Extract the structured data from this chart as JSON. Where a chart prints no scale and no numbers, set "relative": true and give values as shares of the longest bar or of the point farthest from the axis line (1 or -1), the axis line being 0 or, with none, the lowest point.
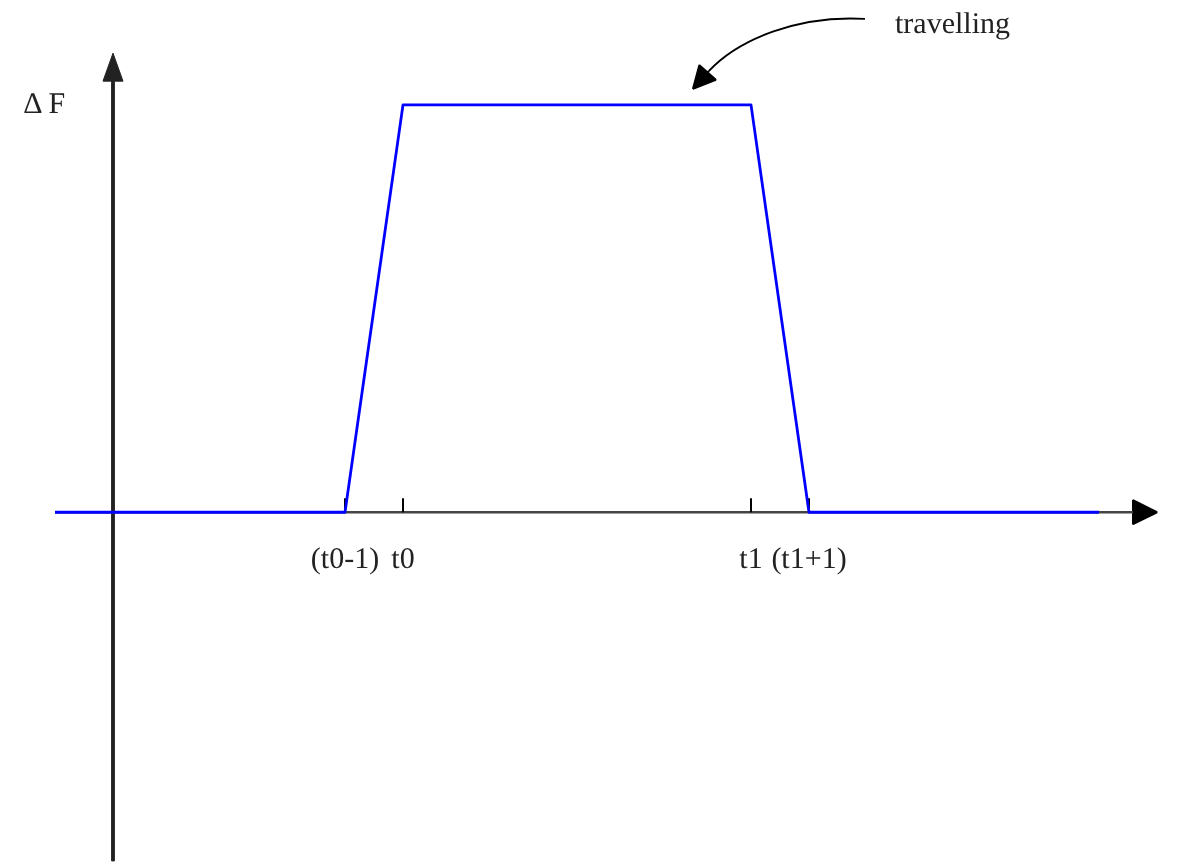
{
  "chart_data": {
    "type": "line",
    "categories": [
      null,
      null,
      null,
      null,
      null,
      "(t0-1)",
      "t0",
      null,
      null,
      null,
      null,
      null,
      "t1",
      "(t1+1)",
      null,
      null,
      null,
      null,
      null
    ],
    "values": [
      0,
      0,
      0,
      0,
      0,
      0,
      1,
      1,
      1,
      1,
      1,
      1,
      1,
      0,
      0,
      0,
      0,
      0,
      0
    ],
    "color": "#0000ff",
    "relative": true,
    "ylabel": "Δ F",
    "annotations": [
      "travelling"
    ]
  }
}
